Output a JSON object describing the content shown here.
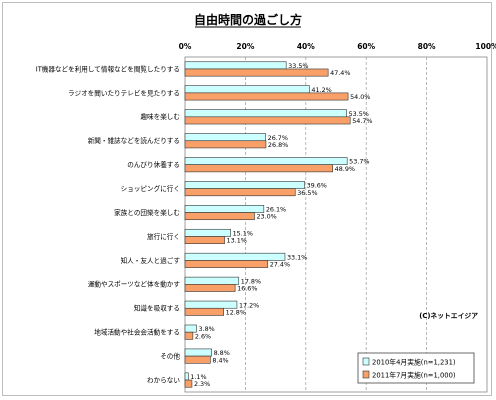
{
  "chart_data": {
    "type": "bar",
    "orientation": "horizontal",
    "title": "自由時間の過ごし方",
    "credit": "(C)ネットエイジア",
    "xlim": [
      0,
      100
    ],
    "x_ticks": [
      "0%",
      "20%",
      "40%",
      "60%",
      "80%",
      "100%"
    ],
    "grid": true,
    "legend_position": "bottom-right",
    "categories": [
      "IT機器などを利用して情報などを閲覧したりする",
      "ラジオを聞いたりテレビを見たりする",
      "趣味を楽しむ",
      "新聞・雑誌などを読んだりする",
      "のんびり休養する",
      "ショッピングに行く",
      "家族との団欒を楽しむ",
      "旅行に行く",
      "知人・友人と過ごす",
      "運動やスポーツなど体を動かす",
      "知識を吸収する",
      "地域活動や社会会活動をする",
      "その他",
      "わからない"
    ],
    "series": [
      {
        "name": "2010年4月実施(n=1,231)",
        "color": "#ccffff",
        "values": [
          33.5,
          41.2,
          53.5,
          26.7,
          53.7,
          39.6,
          26.1,
          15.1,
          33.1,
          17.8,
          17.2,
          3.8,
          8.8,
          1.1
        ],
        "labels": [
          "33.5%",
          "41.2%",
          "53.5%",
          "26.7%",
          "53.7%",
          "39.6%",
          "26.1%",
          "15.1%",
          "33.1%",
          "17.8%",
          "17.2%",
          "3.8%",
          "8.8%",
          "1.1%"
        ]
      },
      {
        "name": "2011年7月実施(n=1,000)",
        "color": "#f8a068",
        "values": [
          47.4,
          54.0,
          54.7,
          26.8,
          48.9,
          36.5,
          23.0,
          13.1,
          27.4,
          16.6,
          12.8,
          2.6,
          8.4,
          2.3
        ],
        "labels": [
          "47.4%",
          "54.0%",
          "54.7%",
          "26.8%",
          "48.9%",
          "36.5%",
          "23.0%",
          "13.1%",
          "27.4%",
          "16.6%",
          "12.8%",
          "2.6%",
          "8.4%",
          "2.3%"
        ]
      }
    ]
  }
}
